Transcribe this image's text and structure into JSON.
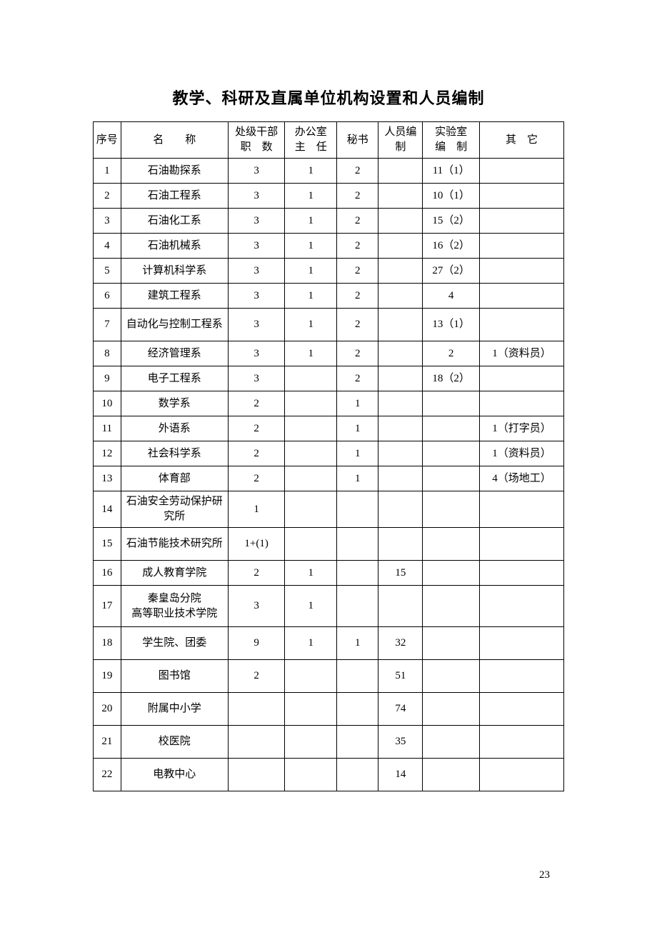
{
  "title": "教学、科研及直属单位机构设置和人员编制",
  "page_number": "23",
  "headers": {
    "seq": "序号",
    "name": "名　　称",
    "cadre_line1": "处级干部",
    "cadre_line2": "职　数",
    "office_line1": "办公室",
    "office_line2": "主　任",
    "secretary": "秘书",
    "staff_line1": "人员编",
    "staff_line2": "制",
    "lab_line1": "实验室",
    "lab_line2": "编　制",
    "other": "其　它"
  },
  "rows": [
    {
      "seq": "1",
      "name": "石油勘探系",
      "cadre": "3",
      "office": "1",
      "secretary": "2",
      "staff": "",
      "lab": "11（1）",
      "other": "",
      "height": "normal"
    },
    {
      "seq": "2",
      "name": "石油工程系",
      "cadre": "3",
      "office": "1",
      "secretary": "2",
      "staff": "",
      "lab": "10（1）",
      "other": "",
      "height": "normal"
    },
    {
      "seq": "3",
      "name": "石油化工系",
      "cadre": "3",
      "office": "1",
      "secretary": "2",
      "staff": "",
      "lab": "15（2）",
      "other": "",
      "height": "normal"
    },
    {
      "seq": "4",
      "name": "石油机械系",
      "cadre": "3",
      "office": "1",
      "secretary": "2",
      "staff": "",
      "lab": "16（2）",
      "other": "",
      "height": "normal"
    },
    {
      "seq": "5",
      "name": "计算机科学系",
      "cadre": "3",
      "office": "1",
      "secretary": "2",
      "staff": "",
      "lab": "27（2）",
      "other": "",
      "height": "normal"
    },
    {
      "seq": "6",
      "name": "建筑工程系",
      "cadre": "3",
      "office": "1",
      "secretary": "2",
      "staff": "",
      "lab": "4",
      "other": "",
      "height": "normal"
    },
    {
      "seq": "7",
      "name": "自动化与控制工程系",
      "cadre": "3",
      "office": "1",
      "secretary": "2",
      "staff": "",
      "lab": "13（1）",
      "other": "",
      "height": "tall"
    },
    {
      "seq": "8",
      "name": "经济管理系",
      "cadre": "3",
      "office": "1",
      "secretary": "2",
      "staff": "",
      "lab": "2",
      "other": "1（资料员）",
      "height": "normal"
    },
    {
      "seq": "9",
      "name": "电子工程系",
      "cadre": "3",
      "office": "",
      "secretary": "2",
      "staff": "",
      "lab": "18（2）",
      "other": "",
      "height": "normal"
    },
    {
      "seq": "10",
      "name": "数学系",
      "cadre": "2",
      "office": "",
      "secretary": "1",
      "staff": "",
      "lab": "",
      "other": "",
      "height": "normal"
    },
    {
      "seq": "11",
      "name": "外语系",
      "cadre": "2",
      "office": "",
      "secretary": "1",
      "staff": "",
      "lab": "",
      "other": "1（打字员）",
      "height": "normal"
    },
    {
      "seq": "12",
      "name": "社会科学系",
      "cadre": "2",
      "office": "",
      "secretary": "1",
      "staff": "",
      "lab": "",
      "other": "1（资料员）",
      "height": "normal"
    },
    {
      "seq": "13",
      "name": "体育部",
      "cadre": "2",
      "office": "",
      "secretary": "1",
      "staff": "",
      "lab": "",
      "other": "4（场地工）",
      "height": "normal"
    },
    {
      "seq": "14",
      "name": "石油安全劳动保护研究所",
      "cadre": "1",
      "office": "",
      "secretary": "",
      "staff": "",
      "lab": "",
      "other": "",
      "height": "tall"
    },
    {
      "seq": "15",
      "name": "石油节能技术研究所",
      "cadre": "1+(1)",
      "office": "",
      "secretary": "",
      "staff": "",
      "lab": "",
      "other": "",
      "height": "tall"
    },
    {
      "seq": "16",
      "name": "成人教育学院",
      "cadre": "2",
      "office": "1",
      "secretary": "",
      "staff": "15",
      "lab": "",
      "other": "",
      "height": "normal"
    },
    {
      "seq": "17",
      "name": "秦皇岛分院\n高等职业技术学院",
      "cadre": "3",
      "office": "1",
      "secretary": "",
      "staff": "",
      "lab": "",
      "other": "",
      "height": "taller"
    },
    {
      "seq": "18",
      "name": "学生院、团委",
      "cadre": "9",
      "office": "1",
      "secretary": "1",
      "staff": "32",
      "lab": "",
      "other": "",
      "height": "tall"
    },
    {
      "seq": "19",
      "name": "图书馆",
      "cadre": "2",
      "office": "",
      "secretary": "",
      "staff": "51",
      "lab": "",
      "other": "",
      "height": "tall"
    },
    {
      "seq": "20",
      "name": "附属中小学",
      "cadre": "",
      "office": "",
      "secretary": "",
      "staff": "74",
      "lab": "",
      "other": "",
      "height": "tall"
    },
    {
      "seq": "21",
      "name": "校医院",
      "cadre": "",
      "office": "",
      "secretary": "",
      "staff": "35",
      "lab": "",
      "other": "",
      "height": "tall"
    },
    {
      "seq": "22",
      "name": "电教中心",
      "cadre": "",
      "office": "",
      "secretary": "",
      "staff": "14",
      "lab": "",
      "other": "",
      "height": "tall"
    }
  ]
}
